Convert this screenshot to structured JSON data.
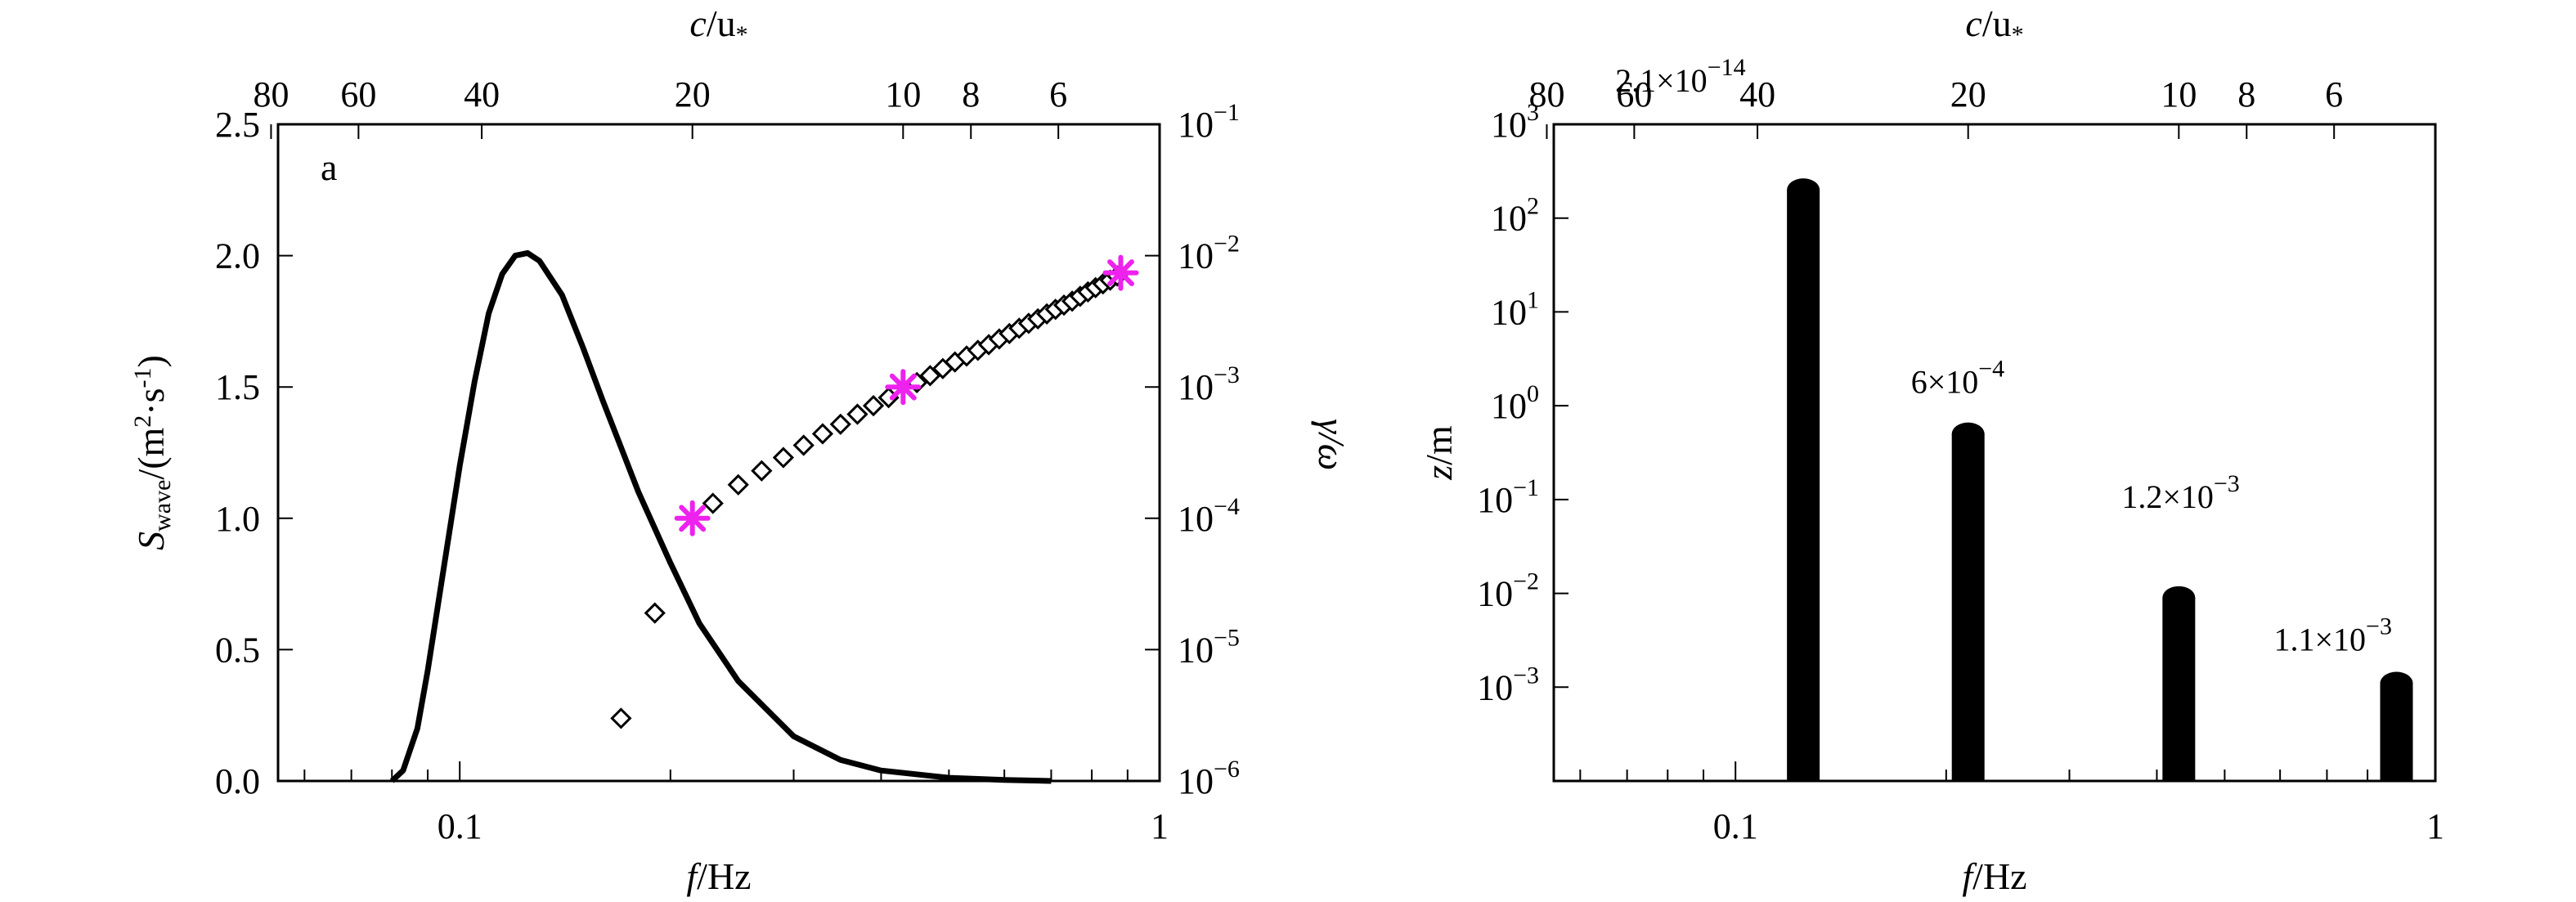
{
  "chart_data": [
    {
      "type": "line",
      "panel_label": "a",
      "xlabel": {
        "italic": "f",
        "rest": "/Hz"
      },
      "top_xlabel": {
        "italic": "c",
        "rest": "/u",
        "sub": "*"
      },
      "ylabel_left": {
        "italic": "S",
        "sub": "wave",
        "rest1": "/(m",
        "sup1": "2",
        "rest2": "·s",
        "sup2": "-1",
        "rest3": ")"
      },
      "ylabel_right": {
        "text": "γ/ω"
      },
      "x_scale": "log",
      "xlim": [
        0.055,
        1.0
      ],
      "x_ticks": [
        {
          "value": 0.1,
          "label": "0.1"
        },
        {
          "value": 1.0,
          "label": "1"
        }
      ],
      "top_x_ticks": [
        {
          "value": 80,
          "label": "80"
        },
        {
          "value": 60,
          "label": "60"
        },
        {
          "value": 40,
          "label": "40"
        },
        {
          "value": 20,
          "label": "20"
        },
        {
          "value": 10,
          "label": "10"
        },
        {
          "value": 8,
          "label": "8"
        },
        {
          "value": 6,
          "label": "6"
        }
      ],
      "ylim_left": [
        0,
        2.5
      ],
      "y_ticks_left": [
        "0.0",
        "0.5",
        "1.0",
        "1.5",
        "2.0",
        "2.5"
      ],
      "ylim_right_exp": [
        -6,
        -1
      ],
      "y_ticks_right": [
        {
          "base": "10",
          "exp": "−6"
        },
        {
          "base": "10",
          "exp": "−5"
        },
        {
          "base": "10",
          "exp": "−4"
        },
        {
          "base": "10",
          "exp": "−3"
        },
        {
          "base": "10",
          "exp": "−2"
        },
        {
          "base": "10",
          "exp": "−1"
        }
      ],
      "series": [
        {
          "marker": "line",
          "axis": "left",
          "points": [
            [
              0.08,
              0.0
            ],
            [
              0.083,
              0.04
            ],
            [
              0.087,
              0.2
            ],
            [
              0.09,
              0.42
            ],
            [
              0.095,
              0.82
            ],
            [
              0.1,
              1.2
            ],
            [
              0.105,
              1.52
            ],
            [
              0.11,
              1.78
            ],
            [
              0.115,
              1.93
            ],
            [
              0.12,
              2.0
            ],
            [
              0.125,
              2.01
            ],
            [
              0.13,
              1.98
            ],
            [
              0.14,
              1.85
            ],
            [
              0.15,
              1.65
            ],
            [
              0.16,
              1.45
            ],
            [
              0.18,
              1.1
            ],
            [
              0.2,
              0.83
            ],
            [
              0.22,
              0.6
            ],
            [
              0.25,
              0.38
            ],
            [
              0.3,
              0.17
            ],
            [
              0.35,
              0.08
            ],
            [
              0.4,
              0.04
            ],
            [
              0.5,
              0.012
            ],
            [
              0.6,
              0.004
            ],
            [
              0.7,
              0.0
            ]
          ]
        },
        {
          "marker": "diamond",
          "axis": "right",
          "points": [
            [
              0.17,
              3e-06
            ],
            [
              0.19,
              1.9e-05
            ],
            [
              0.23,
              0.00013
            ],
            [
              0.25,
              0.00018
            ],
            [
              0.27,
              0.00023
            ],
            [
              0.29,
              0.00029
            ],
            [
              0.31,
              0.00036
            ],
            [
              0.33,
              0.00044
            ],
            [
              0.35,
              0.00052
            ],
            [
              0.37,
              0.00062
            ],
            [
              0.39,
              0.00072
            ],
            [
              0.41,
              0.00083
            ],
            [
              0.45,
              0.00108
            ],
            [
              0.47,
              0.00122
            ],
            [
              0.49,
              0.00138
            ],
            [
              0.51,
              0.00155
            ],
            [
              0.53,
              0.00172
            ],
            [
              0.55,
              0.0019
            ],
            [
              0.57,
              0.0021
            ],
            [
              0.59,
              0.00232
            ],
            [
              0.61,
              0.00255
            ],
            [
              0.63,
              0.0028
            ],
            [
              0.65,
              0.00305
            ],
            [
              0.67,
              0.0033
            ],
            [
              0.69,
              0.0036
            ],
            [
              0.71,
              0.0039
            ],
            [
              0.73,
              0.0042
            ],
            [
              0.75,
              0.0045
            ],
            [
              0.77,
              0.0049
            ],
            [
              0.79,
              0.0053
            ],
            [
              0.81,
              0.0057
            ],
            [
              0.83,
              0.0061
            ],
            [
              0.85,
              0.0065
            ],
            [
              0.87,
              0.007
            ]
          ]
        },
        {
          "marker": "star",
          "axis": "right",
          "color": "#ee22ee",
          "points": [
            [
              0.215,
              0.0001
            ],
            [
              0.43,
              0.001
            ],
            [
              0.88,
              0.0074
            ]
          ]
        }
      ]
    },
    {
      "type": "bar",
      "xlabel": {
        "italic": "f",
        "rest": "/Hz"
      },
      "top_xlabel": {
        "italic": "c",
        "rest": "/u",
        "sub": "*"
      },
      "ylabel": {
        "italic": "z",
        "rest": "/m"
      },
      "x_scale": "log",
      "y_scale": "log",
      "xlim": [
        0.055,
        1.0
      ],
      "ylim_exp": [
        -4,
        3
      ],
      "x_ticks": [
        {
          "value": 0.1,
          "label": "0.1"
        },
        {
          "value": 1.0,
          "label": "1"
        }
      ],
      "top_x_ticks": [
        {
          "value": 80,
          "label": "80"
        },
        {
          "value": 60,
          "label": "60"
        },
        {
          "value": 40,
          "label": "40"
        },
        {
          "value": 20,
          "label": "20"
        },
        {
          "value": 10,
          "label": "10"
        },
        {
          "value": 8,
          "label": "8"
        },
        {
          "value": 6,
          "label": "6"
        }
      ],
      "y_ticks": [
        {
          "exp": -3,
          "base": "10",
          "label": "−3"
        },
        {
          "exp": -2,
          "base": "10",
          "label": "−2"
        },
        {
          "exp": -1,
          "base": "10",
          "label": "−1"
        },
        {
          "exp": 0,
          "base": "10",
          "label": "0"
        },
        {
          "exp": 1,
          "base": "10",
          "label": "1"
        },
        {
          "exp": 2,
          "base": "10",
          "label": "2"
        },
        {
          "exp": 3,
          "base": "10",
          "label": "3"
        }
      ],
      "bars": [
        {
          "x": 0.125,
          "value": 200,
          "annotation": {
            "base": "2.1×10",
            "exp": "−14"
          }
        },
        {
          "x": 0.215,
          "value": 0.5,
          "annotation": {
            "base": "6×10",
            "exp": "−4"
          }
        },
        {
          "x": 0.43,
          "value": 0.009,
          "annotation": {
            "base": "1.2×10",
            "exp": "−3"
          }
        },
        {
          "x": 0.88,
          "value": 0.0011,
          "annotation": {
            "base": "1.1×10",
            "exp": "−3"
          }
        }
      ],
      "color": "#000000"
    }
  ]
}
